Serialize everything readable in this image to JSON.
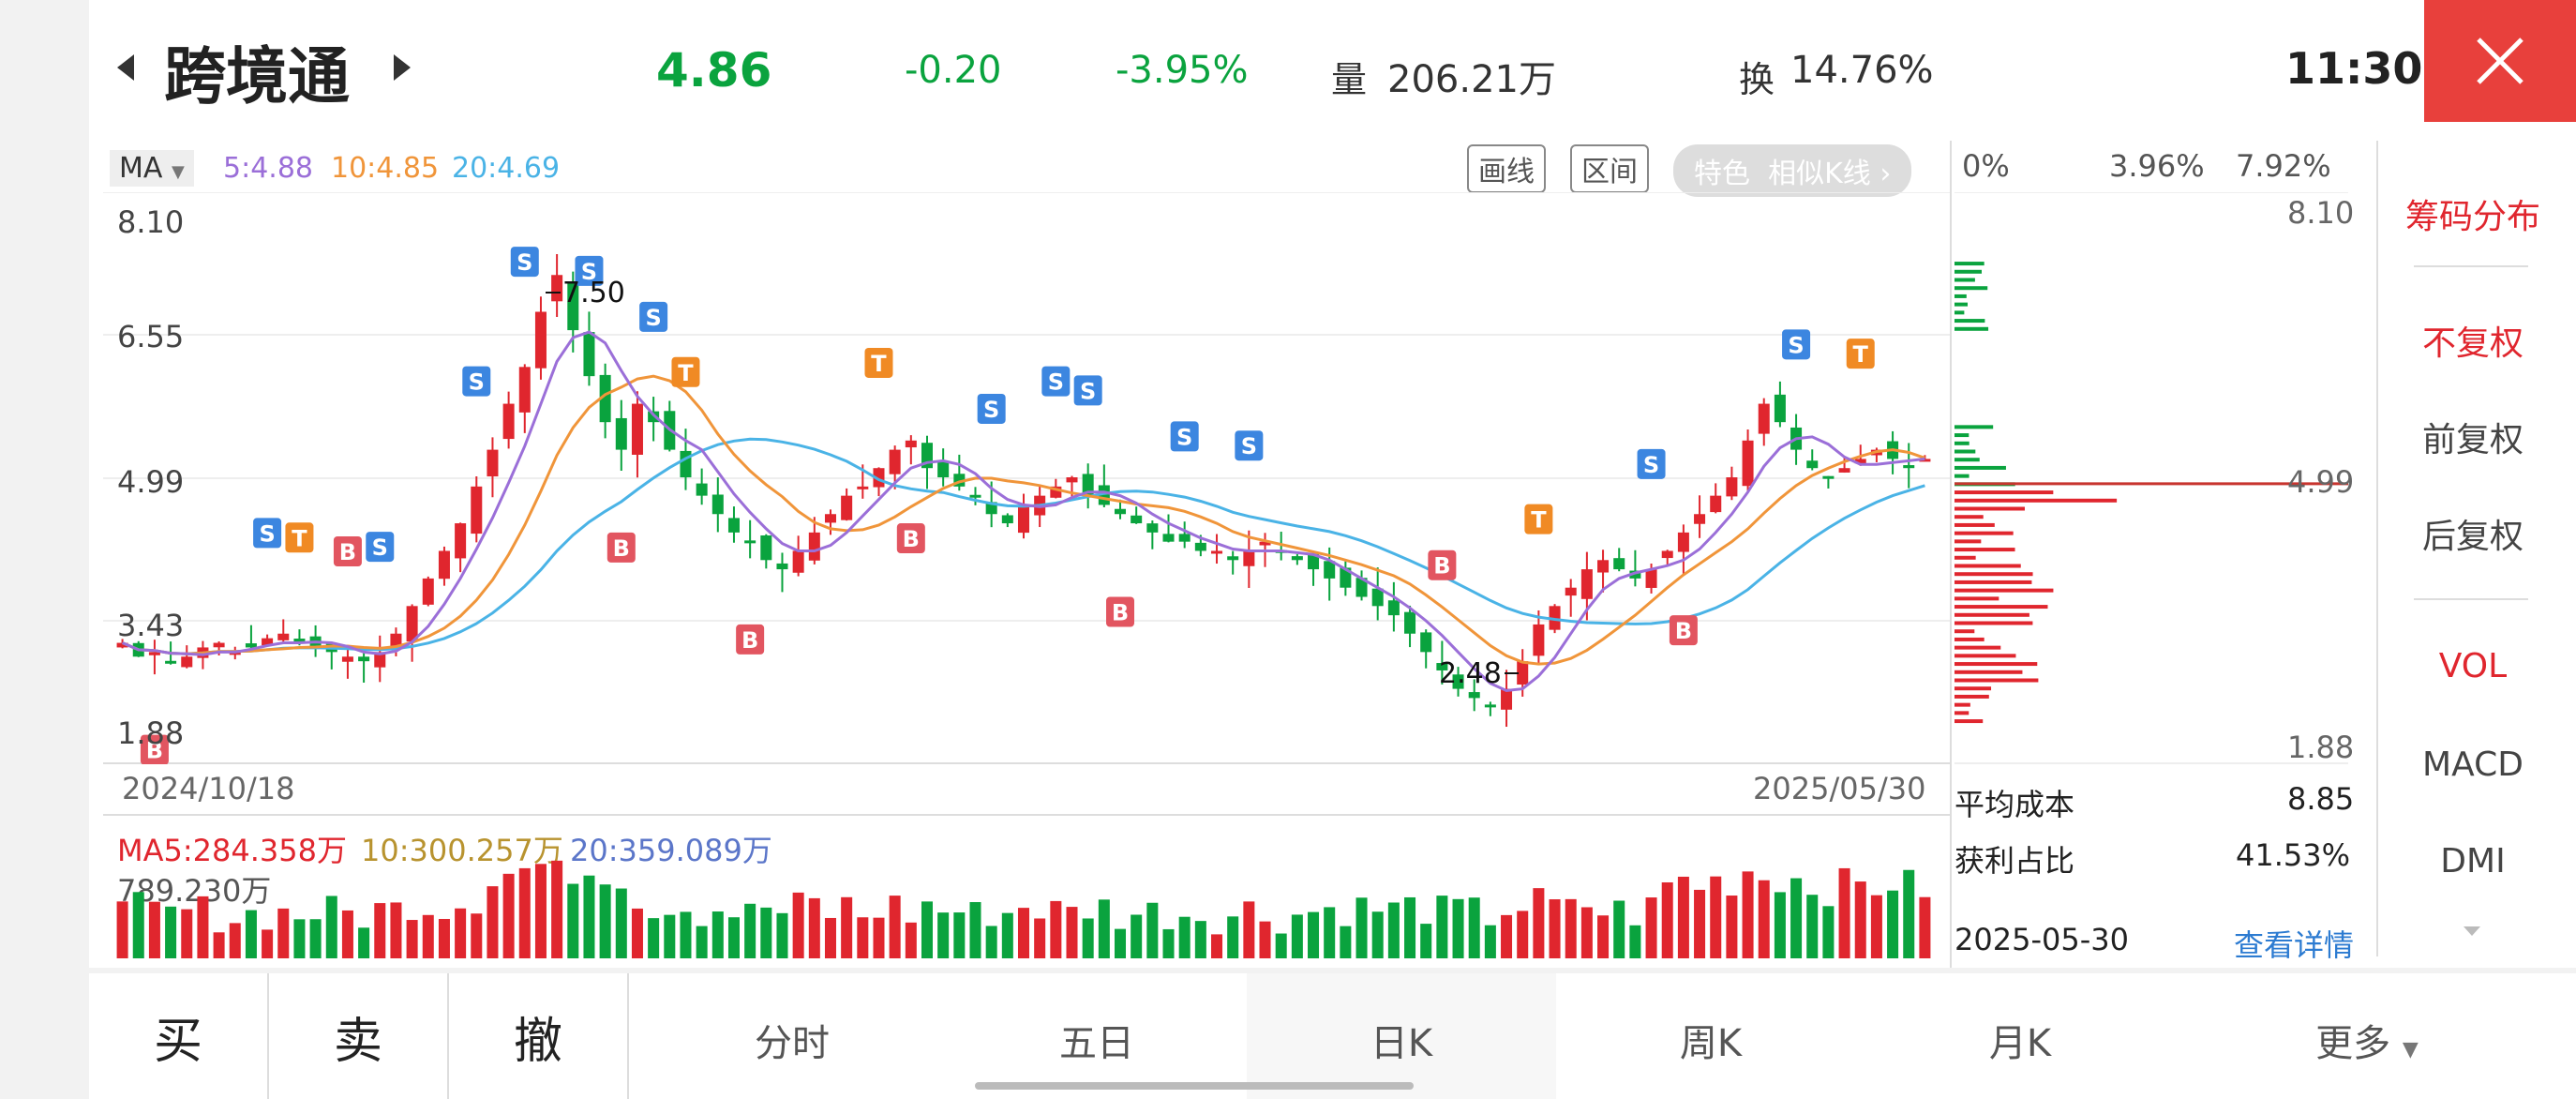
{
  "header": {
    "stock_name": "跨境通",
    "price": "4.86",
    "change": "-0.20",
    "change_pct": "-3.95%",
    "volume_label": "量",
    "volume": "206.21万",
    "turnover_label": "换",
    "turnover": "14.76%",
    "time": "11:30"
  },
  "ma": {
    "selector": "MA",
    "ma5": "5:4.88",
    "ma10": "10:4.85",
    "ma20": "20:4.69"
  },
  "toolbar": {
    "draw_line": "画线",
    "range": "区间",
    "feature": "特色",
    "similar_kline": "相似K线"
  },
  "price_axis": [
    "8.10",
    "6.55",
    "4.99",
    "3.43",
    "1.88"
  ],
  "annotations": {
    "high": "7.50",
    "low": "2.48"
  },
  "dates": {
    "start": "2024/10/18",
    "end": "2025/05/30"
  },
  "volume_panel": {
    "ma5": "MA5:284.358万",
    "ma10": "10:300.257万",
    "ma20": "20:359.089万",
    "max": "789.230万"
  },
  "chip": {
    "pct_ticks": [
      "0%",
      "3.96%",
      "7.92%"
    ],
    "top": "8.10",
    "mid": "4.99",
    "bottom": "1.88",
    "avg_cost_label": "平均成本",
    "avg_cost": "8.85",
    "profit_label": "获利占比",
    "profit": "41.53%",
    "date": "2025-05-30",
    "detail": "查看详情"
  },
  "side_menu": {
    "chip_dist": "筹码分布",
    "no_adjust": "不复权",
    "forward_adjust": "前复权",
    "backward_adjust": "后复权",
    "vol": "VOL",
    "macd": "MACD",
    "dmi": "DMI"
  },
  "bottom_tabs": {
    "buy": "买",
    "sell": "卖",
    "cancel": "撤",
    "intraday": "分时",
    "five_day": "五日",
    "daily": "日K",
    "weekly": "周K",
    "monthly": "月K",
    "more": "更多"
  },
  "colors": {
    "up": "#e0262e",
    "down": "#0aa33e",
    "ma5": "#9b6fd8",
    "ma10": "#f0953a",
    "ma20": "#4ab3e6",
    "accent": "#e8403c"
  },
  "chart_data": {
    "type": "candlestick",
    "period": "daily",
    "x_start": "2024/10/18",
    "x_end": "2025/05/30",
    "ylim": [
      1.88,
      8.1
    ],
    "yticks": [
      8.1,
      6.55,
      4.99,
      3.43,
      1.88
    ],
    "close_path": [
      3.2,
      3.05,
      3.1,
      3.0,
      3.05,
      3.15,
      3.2,
      3.1,
      3.15,
      3.25,
      3.3,
      3.2,
      3.15,
      3.1,
      3.05,
      3.0,
      3.1,
      3.3,
      3.6,
      3.9,
      4.2,
      4.5,
      4.9,
      5.3,
      5.8,
      6.2,
      6.8,
      7.2,
      6.6,
      6.1,
      5.6,
      5.3,
      5.8,
      5.6,
      5.3,
      5.0,
      4.8,
      4.6,
      4.4,
      4.3,
      4.1,
      4.0,
      4.2,
      4.4,
      4.6,
      4.8,
      4.9,
      5.1,
      5.3,
      5.4,
      5.1,
      5.0,
      4.9,
      4.8,
      4.6,
      4.5,
      4.7,
      4.8,
      4.9,
      5.0,
      4.8,
      4.7,
      4.6,
      4.5,
      4.4,
      4.3,
      4.3,
      4.2,
      4.2,
      4.1,
      4.2,
      4.3,
      4.2,
      4.1,
      4.0,
      3.9,
      3.8,
      3.7,
      3.6,
      3.5,
      3.3,
      3.1,
      2.9,
      2.7,
      2.6,
      2.5,
      2.7,
      3.0,
      3.4,
      3.6,
      3.8,
      4.0,
      4.1,
      4.0,
      3.9,
      4.0,
      4.2,
      4.4,
      4.6,
      4.8,
      5.0,
      5.4,
      5.8,
      5.6,
      5.3,
      5.1,
      5.0,
      5.1,
      5.2,
      5.3,
      5.2,
      5.1,
      5.2
    ],
    "high": 7.5,
    "low": 2.48,
    "last": {
      "price": 4.86,
      "change": -0.2,
      "change_pct": -3.95,
      "volume_wan": 206.21,
      "turnover_pct": 14.76
    },
    "ma": {
      "ma5": 4.88,
      "ma10": 4.85,
      "ma20": 4.69
    },
    "volume_ma": {
      "ma5_wan": 284.358,
      "ma10_wan": 300.257,
      "ma20_wan": 359.089,
      "max_wan": 789.23
    }
  }
}
